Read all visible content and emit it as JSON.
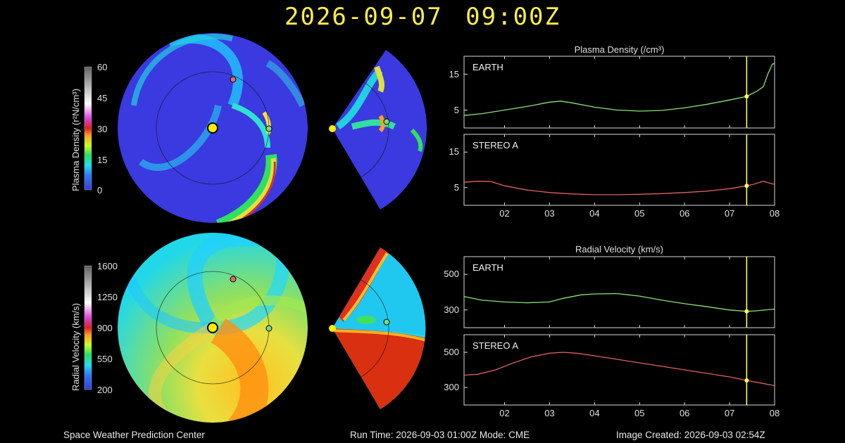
{
  "title": "2026-09-07  09:00Z",
  "footer": {
    "left": "Space Weather Prediction Center",
    "center": "Run Time: 2026-09-03 01:00Z  Mode: CME",
    "right": "Image Created: 2026-09-03 02:54Z"
  },
  "colors": {
    "background": "#000000",
    "title": "#ffee44",
    "earth_line": "#8ee07a",
    "stereo_line": "#e06060",
    "time_marker": "#ffff55",
    "sun": "#ffee00",
    "earth_dot": "#7adc7a",
    "stereo_dot": "#e06a6a"
  },
  "colorbars": {
    "density": {
      "label": "Plasma Density (r²N/cm³)",
      "ticks": [
        "60",
        "45",
        "30",
        "15",
        "0"
      ]
    },
    "velocity": {
      "label": "Radial Velocity (km/s)",
      "ticks": [
        "1600",
        "1250",
        "900",
        "550",
        "200"
      ]
    }
  },
  "chart_data": [
    {
      "type": "line",
      "title": "Plasma Density (/cm³)",
      "panel": "EARTH",
      "xlabel": "",
      "ylabel": "",
      "x_ticks": [
        "02",
        "03",
        "04",
        "05",
        "06",
        "07",
        "08"
      ],
      "y_ticks": [
        "15",
        "5"
      ],
      "xlim": [
        1.1,
        8.0
      ],
      "ylim": [
        0,
        20
      ],
      "marker_x": 7.38,
      "series": [
        {
          "x": [
            1.1,
            1.5,
            2.0,
            2.5,
            3.0,
            3.25,
            3.5,
            4.0,
            4.5,
            5.0,
            5.5,
            6.0,
            6.5,
            7.0,
            7.38,
            7.6,
            7.75,
            7.85,
            7.95,
            8.0
          ],
          "y": [
            3.5,
            4.0,
            5.0,
            6.0,
            7.2,
            7.5,
            7.0,
            5.8,
            5.0,
            4.7,
            4.9,
            5.6,
            6.6,
            7.8,
            8.8,
            10.2,
            11.5,
            15.0,
            17.8,
            18.0
          ]
        }
      ]
    },
    {
      "type": "line",
      "panel": "STEREO A",
      "x_ticks": [
        "02",
        "03",
        "04",
        "05",
        "06",
        "07",
        "08"
      ],
      "y_ticks": [
        "15",
        "5"
      ],
      "xlim": [
        1.1,
        8.0
      ],
      "ylim": [
        0,
        20
      ],
      "marker_x": 7.38,
      "series": [
        {
          "x": [
            1.1,
            1.4,
            1.7,
            2.0,
            2.5,
            3.0,
            3.5,
            4.0,
            4.5,
            5.0,
            5.5,
            6.0,
            6.5,
            7.0,
            7.38,
            7.55,
            7.75,
            7.85,
            8.0
          ],
          "y": [
            6.5,
            6.8,
            6.7,
            5.5,
            4.3,
            3.6,
            3.2,
            3.0,
            3.0,
            3.1,
            3.3,
            3.6,
            4.0,
            4.7,
            5.5,
            6.0,
            6.8,
            6.4,
            5.9
          ]
        }
      ]
    },
    {
      "type": "line",
      "title": "Radial Velocity (km/s)",
      "panel": "EARTH",
      "x_ticks": [
        "02",
        "03",
        "04",
        "05",
        "06",
        "07",
        "08"
      ],
      "y_ticks": [
        "500",
        "300"
      ],
      "xlim": [
        1.1,
        8.0
      ],
      "ylim": [
        200,
        600
      ],
      "marker_x": 7.38,
      "series": [
        {
          "x": [
            1.1,
            1.5,
            2.0,
            2.5,
            3.0,
            3.3,
            3.7,
            4.0,
            4.5,
            5.0,
            5.5,
            6.0,
            6.5,
            7.0,
            7.38,
            7.6,
            8.0
          ],
          "y": [
            375,
            355,
            345,
            340,
            345,
            365,
            385,
            390,
            392,
            378,
            355,
            335,
            318,
            300,
            292,
            295,
            305
          ]
        }
      ]
    },
    {
      "type": "line",
      "panel": "STEREO A",
      "x_ticks": [
        "02",
        "03",
        "04",
        "05",
        "06",
        "07",
        "08"
      ],
      "y_ticks": [
        "500",
        "300"
      ],
      "xlim": [
        1.1,
        8.0
      ],
      "ylim": [
        200,
        600
      ],
      "marker_x": 7.38,
      "series": [
        {
          "x": [
            1.1,
            1.4,
            1.8,
            2.2,
            2.6,
            3.0,
            3.3,
            3.6,
            4.0,
            4.5,
            5.0,
            5.5,
            6.0,
            6.5,
            7.0,
            7.38,
            7.7,
            8.0
          ],
          "y": [
            370,
            375,
            400,
            440,
            475,
            495,
            500,
            495,
            480,
            460,
            440,
            420,
            400,
            380,
            360,
            340,
            325,
            310
          ]
        }
      ]
    }
  ]
}
